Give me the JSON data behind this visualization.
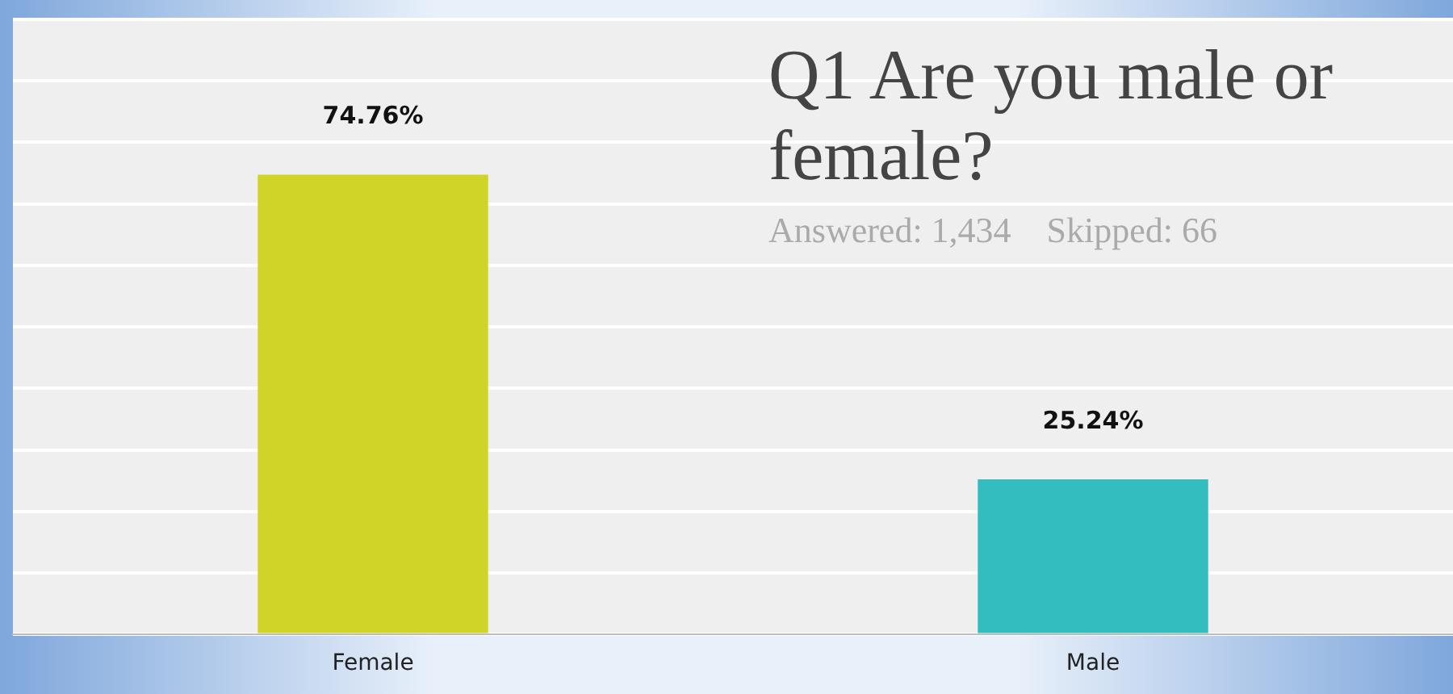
{
  "chart_data": {
    "type": "bar",
    "title": "Q1 Are you male or female?",
    "subtitle": "Answered: 1,434    Skipped: 66",
    "categories": [
      "Female",
      "Male"
    ],
    "values": [
      74.76,
      25.24
    ],
    "colors": [
      "#d0d426",
      "#33bdbf"
    ],
    "value_labels": [
      "74.76%",
      "25.24%"
    ],
    "ylim": [
      0,
      100
    ],
    "yticks": [
      {
        "value": 0,
        "label": null
      },
      {
        "value": 10,
        "label": null
      },
      {
        "value": 20,
        "label": null
      },
      {
        "value": 30,
        "label": null
      },
      {
        "value": 40,
        "label": null
      },
      {
        "value": 50,
        "label": null
      },
      {
        "value": 60,
        "label": null
      },
      {
        "value": 70,
        "label": null
      },
      {
        "value": 80,
        "label": null
      },
      {
        "value": 90,
        "label": null
      },
      {
        "value": 100,
        "label": null
      }
    ],
    "grid": "y",
    "tick_labels": "x",
    "legend": false
  }
}
